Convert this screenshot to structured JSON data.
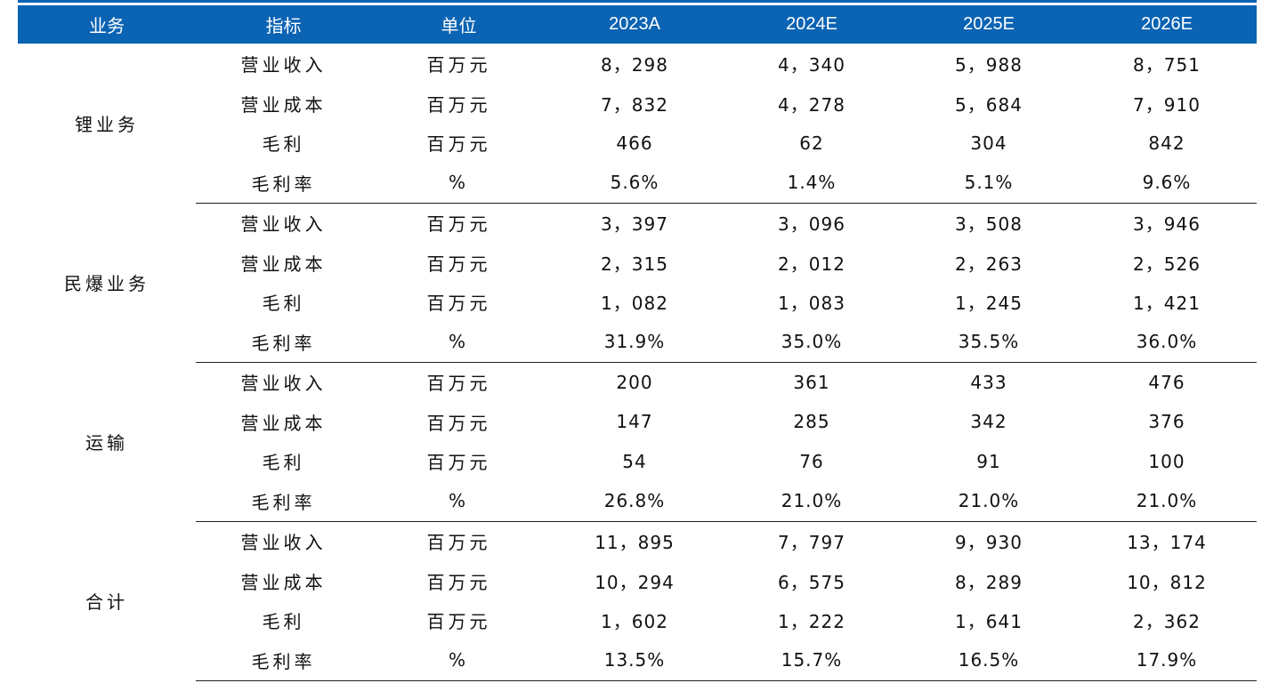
{
  "header": [
    "业务",
    "指标",
    "单位",
    "2023A",
    "2024E",
    "2025E",
    "2026E"
  ],
  "colors": {
    "header_bg": "#0b63b3",
    "header_text": "#ffffff",
    "rule": "#222222"
  },
  "groups": [
    {
      "segment": "锂业务",
      "rows": [
        {
          "metric": "营业收入",
          "unit": "百万元",
          "values": [
            "8，298",
            "4，340",
            "5，988",
            "8，751"
          ]
        },
        {
          "metric": "营业成本",
          "unit": "百万元",
          "values": [
            "7，832",
            "4，278",
            "5，684",
            "7，910"
          ]
        },
        {
          "metric": "毛利",
          "unit": "百万元",
          "values": [
            "466",
            "62",
            "304",
            "842"
          ]
        },
        {
          "metric": "毛利率",
          "unit": "%",
          "values": [
            "5.6%",
            "1.4%",
            "5.1%",
            "9.6%"
          ]
        }
      ]
    },
    {
      "segment": "民爆业务",
      "rows": [
        {
          "metric": "营业收入",
          "unit": "百万元",
          "values": [
            "3，397",
            "3，096",
            "3，508",
            "3，946"
          ]
        },
        {
          "metric": "营业成本",
          "unit": "百万元",
          "values": [
            "2，315",
            "2，012",
            "2，263",
            "2，526"
          ]
        },
        {
          "metric": "毛利",
          "unit": "百万元",
          "values": [
            "1，082",
            "1，083",
            "1，245",
            "1，421"
          ]
        },
        {
          "metric": "毛利率",
          "unit": "%",
          "values": [
            "31.9%",
            "35.0%",
            "35.5%",
            "36.0%"
          ]
        }
      ]
    },
    {
      "segment": "运输",
      "rows": [
        {
          "metric": "营业收入",
          "unit": "百万元",
          "values": [
            "200",
            "361",
            "433",
            "476"
          ]
        },
        {
          "metric": "营业成本",
          "unit": "百万元",
          "values": [
            "147",
            "285",
            "342",
            "376"
          ]
        },
        {
          "metric": "毛利",
          "unit": "百万元",
          "values": [
            "54",
            "76",
            "91",
            "100"
          ]
        },
        {
          "metric": "毛利率",
          "unit": "%",
          "values": [
            "26.8%",
            "21.0%",
            "21.0%",
            "21.0%"
          ]
        }
      ]
    },
    {
      "segment": "合计",
      "rows": [
        {
          "metric": "营业收入",
          "unit": "百万元",
          "values": [
            "11，895",
            "7，797",
            "9，930",
            "13，174"
          ]
        },
        {
          "metric": "营业成本",
          "unit": "百万元",
          "values": [
            "10，294",
            "6，575",
            "8，289",
            "10，812"
          ]
        },
        {
          "metric": "毛利",
          "unit": "百万元",
          "values": [
            "1，602",
            "1，222",
            "1，641",
            "2，362"
          ]
        },
        {
          "metric": "毛利率",
          "unit": "%",
          "values": [
            "13.5%",
            "15.7%",
            "16.5%",
            "17.9%"
          ]
        }
      ]
    }
  ]
}
